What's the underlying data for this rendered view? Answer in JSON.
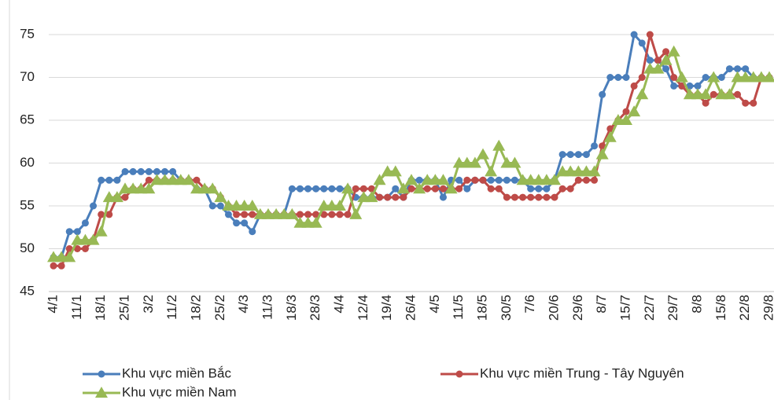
{
  "chart_data": {
    "type": "line",
    "categories": [
      "4/1",
      null,
      null,
      "11/1",
      null,
      null,
      "18/1",
      null,
      null,
      "25/1",
      null,
      null,
      "3/2",
      null,
      null,
      "11/2",
      null,
      null,
      "18/2",
      null,
      null,
      "25/2",
      null,
      null,
      "4/3",
      null,
      null,
      "11/3",
      null,
      null,
      "18/3",
      null,
      null,
      "28/3",
      null,
      null,
      "4/4",
      null,
      null,
      "12/4",
      null,
      null,
      "19/4",
      null,
      null,
      "26/4",
      null,
      null,
      "4/5",
      null,
      null,
      "11/5",
      null,
      null,
      "18/5",
      null,
      null,
      "30/5",
      null,
      null,
      "7/6",
      null,
      null,
      "20/6",
      null,
      null,
      "29/6",
      null,
      null,
      "8/7",
      null,
      null,
      "15/7",
      null,
      null,
      "22/7",
      null,
      null,
      "29/7",
      null,
      null,
      "8/8",
      null,
      null,
      "15/8",
      null,
      null,
      "22/8",
      null,
      null,
      "29/8"
    ],
    "series": [
      {
        "name": "Khu vực miền Bắc",
        "color": "#4a7ebb",
        "marker": "circle",
        "values": [
          49,
          49,
          52,
          52,
          53,
          55,
          58,
          58,
          58,
          59,
          59,
          59,
          59,
          59,
          59,
          59,
          58,
          58,
          57,
          57,
          55,
          55,
          54,
          53,
          53,
          52,
          54,
          54,
          54,
          54,
          57,
          57,
          57,
          57,
          57,
          57,
          57,
          57,
          56,
          56,
          56,
          56,
          56,
          57,
          56,
          58,
          58,
          58,
          58,
          56,
          58,
          58,
          57,
          58,
          58,
          58,
          58,
          58,
          58,
          58,
          57,
          57,
          57,
          58,
          61,
          61,
          61,
          61,
          62,
          68,
          70,
          70,
          70,
          75,
          74,
          72,
          72,
          71,
          69,
          69,
          69,
          69,
          70,
          70,
          70,
          71,
          71,
          71,
          70,
          70,
          70
        ]
      },
      {
        "name": "Khu vực miền Trung  - Tây Nguyên",
        "color": "#be4b48",
        "marker": "circle",
        "values": [
          48,
          48,
          50,
          50,
          50,
          51,
          54,
          54,
          56,
          56,
          57,
          57,
          58,
          58,
          58,
          58,
          58,
          58,
          58,
          57,
          57,
          56,
          55,
          54,
          54,
          54,
          54,
          54,
          54,
          54,
          54,
          54,
          54,
          54,
          54,
          54,
          54,
          54,
          57,
          57,
          57,
          56,
          56,
          56,
          56,
          57,
          57,
          57,
          57,
          57,
          57,
          57,
          58,
          58,
          58,
          57,
          57,
          56,
          56,
          56,
          56,
          56,
          56,
          56,
          57,
          57,
          58,
          58,
          58,
          62,
          64,
          65,
          66,
          69,
          70,
          75,
          72,
          73,
          70,
          69,
          68,
          68,
          67,
          68,
          68,
          68,
          68,
          67,
          67,
          70,
          70
        ]
      },
      {
        "name": "Khu vực miền Nam",
        "color": "#98b954",
        "marker": "triangle",
        "values": [
          49,
          49,
          49,
          51,
          51,
          51,
          52,
          56,
          56,
          57,
          57,
          57,
          57,
          58,
          58,
          58,
          58,
          58,
          57,
          57,
          57,
          56,
          55,
          55,
          55,
          55,
          54,
          54,
          54,
          54,
          54,
          53,
          53,
          53,
          55,
          55,
          55,
          57,
          54,
          56,
          56,
          58,
          59,
          59,
          57,
          58,
          57,
          58,
          58,
          58,
          57,
          60,
          60,
          60,
          61,
          59,
          62,
          60,
          60,
          58,
          58,
          58,
          58,
          58,
          59,
          59,
          59,
          59,
          59,
          61,
          63,
          65,
          65,
          66,
          68,
          71,
          71,
          72,
          73,
          70,
          68,
          68,
          68,
          70,
          68,
          68,
          70,
          70,
          70,
          70,
          70
        ]
      }
    ],
    "ylim": [
      45,
      75
    ],
    "yticks": [
      45,
      50,
      55,
      60,
      65,
      70,
      75
    ],
    "grid": true
  }
}
